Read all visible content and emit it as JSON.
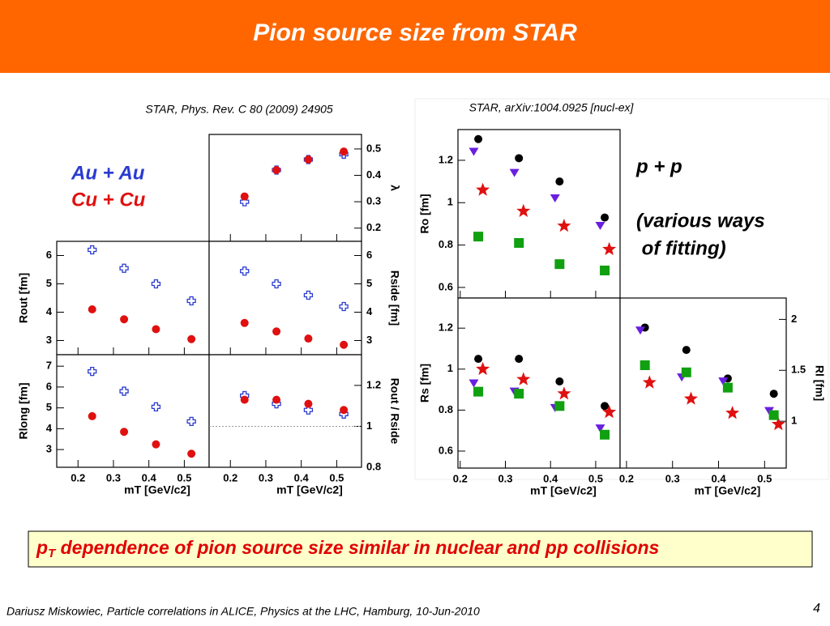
{
  "slide": {
    "title": "Pion source size from STAR",
    "ref_left": "STAR, Phys. Rev. C 80 (2009) 24905",
    "ref_right": "STAR, arXiv:1004.0925 [nucl-ex]",
    "pp_label": "p + p",
    "pp_note": [
      "(various ways",
      " of fitting)"
    ],
    "highlight": [
      "p",
      "T",
      " dependence of pion source size similar in nuclear and pp collisions"
    ],
    "footer": "Dariusz Miskowiec, Particle correlations in ALICE, Physics at the LHC, Hamburg, 10-Jun-2010",
    "page": "4"
  },
  "chart_data": [
    {
      "type": "scatter",
      "ylabel": "λ",
      "yaxis": "right",
      "xlim": [
        0.14,
        0.57
      ],
      "xticks": [
        0.2,
        0.3,
        0.4,
        0.5
      ],
      "ylim": [
        0.15,
        0.555
      ],
      "yticks": [
        0.2,
        0.3,
        0.4,
        0.5
      ],
      "series": [
        {
          "name": "Au + Au",
          "color": "#2a3bd0",
          "marker": "cross-open",
          "x": [
            0.24,
            0.33,
            0.42,
            0.52
          ],
          "values": [
            0.3,
            0.42,
            0.46,
            0.48
          ]
        },
        {
          "name": "Cu + Cu",
          "color": "#e01010",
          "marker": "circle",
          "x": [
            0.24,
            0.33,
            0.42,
            0.52
          ],
          "values": [
            0.32,
            0.42,
            0.46,
            0.49
          ]
        }
      ]
    },
    {
      "type": "scatter",
      "ylabel": "Rout [fm]",
      "yaxis": "left",
      "xlim": [
        0.14,
        0.57
      ],
      "xticks": [
        0.2,
        0.3,
        0.4,
        0.5
      ],
      "ylim": [
        2.5,
        6.5
      ],
      "yticks": [
        3,
        4,
        5,
        6
      ],
      "series": [
        {
          "color": "#2a3bd0",
          "marker": "cross-open",
          "x": [
            0.24,
            0.33,
            0.42,
            0.52
          ],
          "values": [
            6.2,
            5.55,
            5.0,
            4.4
          ]
        },
        {
          "color": "#e01010",
          "marker": "circle",
          "x": [
            0.24,
            0.33,
            0.42,
            0.52
          ],
          "values": [
            4.1,
            3.75,
            3.4,
            3.05
          ]
        }
      ]
    },
    {
      "type": "scatter",
      "ylabel": "Rside [fm]",
      "yaxis": "right",
      "xlim": [
        0.14,
        0.57
      ],
      "xticks": [
        0.2,
        0.3,
        0.4,
        0.5
      ],
      "ylim": [
        2.5,
        6.5
      ],
      "yticks": [
        3,
        4,
        5,
        6
      ],
      "series": [
        {
          "color": "#2a3bd0",
          "marker": "cross-open",
          "x": [
            0.24,
            0.33,
            0.42,
            0.52
          ],
          "values": [
            5.45,
            5.0,
            4.6,
            4.2
          ]
        },
        {
          "color": "#e01010",
          "marker": "circle",
          "x": [
            0.24,
            0.33,
            0.42,
            0.52
          ],
          "values": [
            3.62,
            3.32,
            3.07,
            2.85
          ]
        }
      ]
    },
    {
      "type": "scatter",
      "ylabel": "Rlong [fm]",
      "xlabel": "mT [GeV/c2]",
      "yaxis": "left",
      "xlim": [
        0.14,
        0.57
      ],
      "xticks": [
        0.2,
        0.3,
        0.4,
        0.5
      ],
      "ylim": [
        2.15,
        7.55
      ],
      "yticks": [
        3,
        4,
        5,
        6,
        7
      ],
      "series": [
        {
          "color": "#2a3bd0",
          "marker": "cross-open",
          "x": [
            0.24,
            0.33,
            0.42,
            0.52
          ],
          "values": [
            6.75,
            5.8,
            5.05,
            4.35
          ]
        },
        {
          "color": "#e01010",
          "marker": "circle",
          "x": [
            0.24,
            0.33,
            0.42,
            0.52
          ],
          "values": [
            4.6,
            3.85,
            3.25,
            2.8
          ]
        }
      ]
    },
    {
      "type": "scatter",
      "ylabel": "Rout / Rside",
      "xlabel": "mT [GeV/c2]",
      "yaxis": "right",
      "reference_line": 1,
      "xlim": [
        0.14,
        0.57
      ],
      "xticks": [
        0.2,
        0.3,
        0.4,
        0.5
      ],
      "ylim": [
        0.8,
        1.35
      ],
      "yticks": [
        0.8,
        1,
        1.2
      ],
      "series": [
        {
          "color": "#2a3bd0",
          "marker": "cross-open",
          "x": [
            0.24,
            0.33,
            0.42,
            0.52
          ],
          "values": [
            1.15,
            1.11,
            1.08,
            1.06
          ]
        },
        {
          "color": "#e01010",
          "marker": "circle",
          "x": [
            0.24,
            0.33,
            0.42,
            0.52
          ],
          "values": [
            1.13,
            1.13,
            1.11,
            1.08
          ]
        }
      ]
    },
    {
      "type": "scatter",
      "ylabel": "Ro [fm]",
      "yaxis": "left",
      "xlim": [
        0.195,
        0.554
      ],
      "xticks": [
        0.2,
        0.3,
        0.4,
        0.5
      ],
      "ylim": [
        0.55,
        1.345
      ],
      "yticks": [
        0.6,
        0.8,
        1,
        1.2
      ],
      "series": [
        {
          "color": "#000000",
          "marker": "circle",
          "x": [
            0.24,
            0.33,
            0.42,
            0.52
          ],
          "values": [
            1.3,
            1.21,
            1.1,
            0.93
          ]
        },
        {
          "color": "#6a1ee0",
          "marker": "triangle-down",
          "x": [
            0.23,
            0.32,
            0.41,
            0.51
          ],
          "values": [
            1.24,
            1.14,
            1.02,
            0.89
          ]
        },
        {
          "color": "#e01010",
          "marker": "star",
          "x": [
            0.25,
            0.34,
            0.43,
            0.53
          ],
          "values": [
            1.06,
            0.96,
            0.89,
            0.78
          ]
        },
        {
          "color": "#10a010",
          "marker": "square",
          "x": [
            0.24,
            0.33,
            0.42,
            0.52
          ],
          "values": [
            0.84,
            0.81,
            0.71,
            0.68
          ]
        }
      ]
    },
    {
      "type": "scatter",
      "ylabel": "Rs [fm]",
      "xlabel": "mT [GeV/c2]",
      "yaxis": "left",
      "xlim": [
        0.195,
        0.554
      ],
      "xticks": [
        0.2,
        0.3,
        0.4,
        0.5
      ],
      "ylim": [
        0.517,
        1.347
      ],
      "yticks": [
        0.6,
        0.8,
        1,
        1.2
      ],
      "series": [
        {
          "color": "#000000",
          "marker": "circle",
          "x": [
            0.24,
            0.33,
            0.42,
            0.52
          ],
          "values": [
            1.05,
            1.05,
            0.94,
            0.82
          ]
        },
        {
          "color": "#6a1ee0",
          "marker": "triangle-down",
          "x": [
            0.23,
            0.32,
            0.41,
            0.51
          ],
          "values": [
            0.93,
            0.89,
            0.81,
            0.71
          ]
        },
        {
          "color": "#e01010",
          "marker": "star",
          "x": [
            0.25,
            0.34,
            0.43,
            0.53
          ],
          "values": [
            1.0,
            0.95,
            0.88,
            0.79
          ]
        },
        {
          "color": "#10a010",
          "marker": "square",
          "x": [
            0.24,
            0.33,
            0.42,
            0.52
          ],
          "values": [
            0.89,
            0.88,
            0.82,
            0.68
          ]
        }
      ]
    },
    {
      "type": "scatter",
      "ylabel": "Rl [fm]",
      "xlabel": "mT [GeV/c2]",
      "yaxis": "right",
      "xlim": [
        0.186,
        0.547
      ],
      "xticks": [
        0.2,
        0.3,
        0.4,
        0.5
      ],
      "ylim": [
        0.54,
        2.21
      ],
      "yticks": [
        1,
        1.5,
        2
      ],
      "series": [
        {
          "color": "#000000",
          "marker": "circle",
          "x": [
            0.24,
            0.33,
            0.42,
            0.52
          ],
          "values": [
            1.92,
            1.7,
            1.42,
            1.27
          ]
        },
        {
          "color": "#6a1ee0",
          "marker": "triangle-down",
          "x": [
            0.23,
            0.32,
            0.41,
            0.51
          ],
          "values": [
            1.89,
            1.43,
            1.39,
            1.1
          ]
        },
        {
          "color": "#e01010",
          "marker": "star",
          "x": [
            0.25,
            0.34,
            0.43,
            0.53
          ],
          "values": [
            1.38,
            1.22,
            1.08,
            0.97
          ]
        },
        {
          "color": "#10a010",
          "marker": "square",
          "x": [
            0.24,
            0.33,
            0.42,
            0.52
          ],
          "values": [
            1.55,
            1.48,
            1.33,
            1.06
          ]
        }
      ]
    }
  ]
}
